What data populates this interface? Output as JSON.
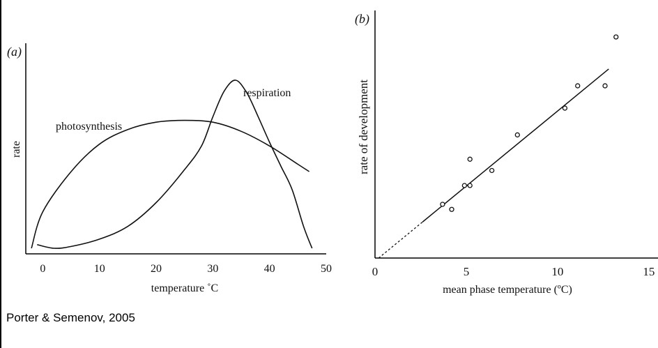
{
  "source_caption": "Porter & Semenov, 2005",
  "chart_data": [
    {
      "panel": "(a)",
      "type": "line",
      "xlabel": "temperature ˚C",
      "ylabel": "rate",
      "xlim": [
        -3,
        50
      ],
      "ylim": [
        0,
        1
      ],
      "x_ticks": [
        0,
        10,
        20,
        30,
        40,
        50
      ],
      "grid": false,
      "series": [
        {
          "name": "photosynthesis",
          "x": [
            -2,
            0,
            5,
            10,
            15,
            20,
            25,
            30,
            35,
            40,
            45,
            47
          ],
          "y": [
            0.0,
            0.2,
            0.42,
            0.57,
            0.65,
            0.69,
            0.7,
            0.69,
            0.64,
            0.56,
            0.46,
            0.42
          ]
        },
        {
          "name": "respiration",
          "x": [
            -1,
            2,
            5,
            10,
            15,
            20,
            25,
            28,
            30,
            32,
            34,
            36,
            38,
            40,
            42,
            44,
            46,
            47.5
          ],
          "y": [
            0.02,
            0.0,
            0.01,
            0.05,
            0.12,
            0.25,
            0.43,
            0.56,
            0.72,
            0.86,
            0.92,
            0.85,
            0.72,
            0.58,
            0.45,
            0.32,
            0.12,
            0.0
          ]
        }
      ]
    },
    {
      "panel": "(b)",
      "type": "scatter",
      "xlabel": "mean phase temperature (ºC)",
      "ylabel": "rate of development",
      "xlim": [
        0,
        15.5
      ],
      "ylim": [
        0,
        1
      ],
      "x_ticks": [
        0,
        5,
        10,
        15
      ],
      "grid": false,
      "points": {
        "x": [
          3.7,
          4.2,
          4.9,
          5.2,
          5.2,
          6.4,
          7.8,
          10.4,
          11.1,
          12.6,
          13.2
        ],
        "y": [
          0.243,
          0.22,
          0.328,
          0.328,
          0.447,
          0.396,
          0.557,
          0.678,
          0.779,
          0.779,
          1.0
        ]
      },
      "fit_line": {
        "x": [
          0.2,
          12.8
        ],
        "y": [
          0.0,
          0.855
        ],
        "extrapolated_until_x": 2.6
      }
    }
  ]
}
